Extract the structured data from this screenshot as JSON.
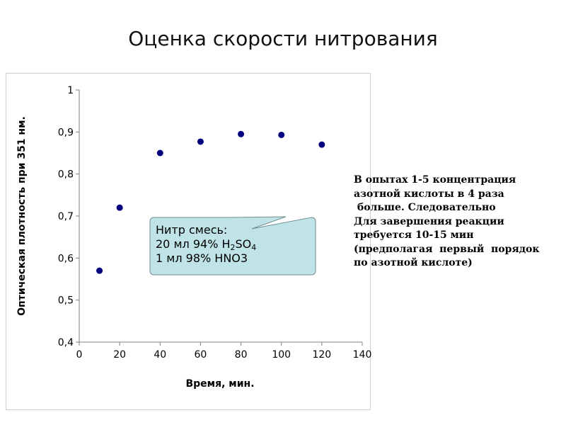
{
  "slide": {
    "title": "Оценка скорости нитрования"
  },
  "callout": {
    "line1": "Нитр смесь:",
    "line2_prefix": "20 мл 94% H",
    "line2_sub1": "2",
    "line2_mid": "SO",
    "line2_sub2": "4",
    "line3": "1 мл 98% HNO3",
    "fill_color": "#bfe3e6",
    "border_color": "#6f8f93"
  },
  "note": {
    "lines": [
      "В опытах 1-5 концентрация",
      "азотной кислоты в 4 раза",
      " больше. Следовательно",
      "Для завершения реакции",
      "требуется 10-15 мин",
      "(предполагая  первый  порядок",
      "по азотной кислоте)"
    ]
  },
  "chart_data": {
    "type": "scatter",
    "xlabel": "Время, мин.",
    "ylabel": "Оптическая плотность при 351 нм.",
    "xlim": [
      0,
      140
    ],
    "ylim": [
      0.4,
      1
    ],
    "x_ticks": [
      0,
      20,
      40,
      60,
      80,
      100,
      120,
      140
    ],
    "y_ticks": [
      "0,4",
      "0,5",
      "0,6",
      "0,7",
      "0,8",
      "0,9",
      "1"
    ],
    "y_tick_values": [
      0.4,
      0.5,
      0.6,
      0.7,
      0.8,
      0.9,
      1.0
    ],
    "grid": false,
    "legend": "none",
    "marker_color": "#00007f",
    "points": [
      {
        "x": 10,
        "y": 0.57
      },
      {
        "x": 20,
        "y": 0.72
      },
      {
        "x": 40,
        "y": 0.85
      },
      {
        "x": 60,
        "y": 0.877
      },
      {
        "x": 80,
        "y": 0.895
      },
      {
        "x": 100,
        "y": 0.893
      },
      {
        "x": 120,
        "y": 0.87
      }
    ]
  }
}
